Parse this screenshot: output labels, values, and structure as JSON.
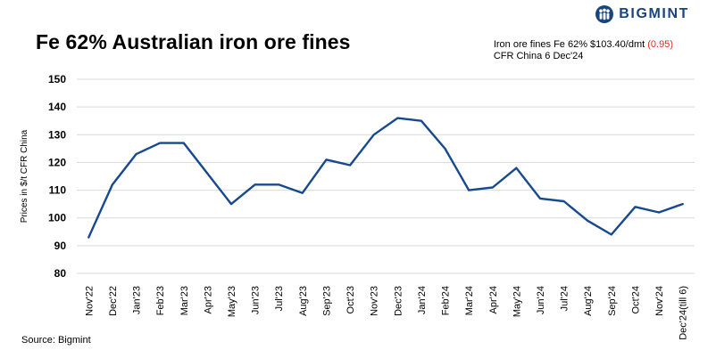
{
  "chart_data": {
    "type": "line",
    "title": "Fe 62% Australian iron ore fines",
    "xlabel": "",
    "ylabel": "Prices in $/t CFR China",
    "ylim": [
      80,
      150
    ],
    "yticks": [
      80,
      90,
      100,
      110,
      120,
      130,
      140,
      150
    ],
    "grid": true,
    "legend": "none",
    "categories": [
      "Nov'22",
      "Dec'22",
      "Jan'23",
      "Feb'23",
      "Mar'23",
      "Apr'23",
      "May'23",
      "Jun'23",
      "Jul'23",
      "Aug'23",
      "Sep'23",
      "Oct'23",
      "Nov'23",
      "Dec'23",
      "Jan'24",
      "Feb'24",
      "Mar'24",
      "Apr'24",
      "May'24",
      "Jun'24",
      "Jul'24",
      "Aug'24",
      "Sep'24",
      "Oct'24",
      "Nov'24",
      "Dec'24(till 6)"
    ],
    "series": [
      {
        "values": [
          93,
          112,
          123,
          127,
          127,
          116,
          105,
          112,
          112,
          109,
          121,
          119,
          130,
          136,
          135,
          125,
          110,
          111,
          118,
          107,
          106,
          99,
          94,
          104,
          102,
          105
        ]
      }
    ],
    "line_color": "#17498f"
  },
  "header": {
    "brand_name": "BIGMINT",
    "brand_color": "#17457f",
    "brand_icon": "bigmint-logo-icon"
  },
  "price_note": {
    "line1_prefix": "Iron ore fines Fe 62% $103.40/dmt ",
    "line1_change": "(0.95)",
    "line2": "CFR China 6 Dec'24",
    "change_color": "#d93025"
  },
  "footer": {
    "source": "Source: Bigmint"
  }
}
